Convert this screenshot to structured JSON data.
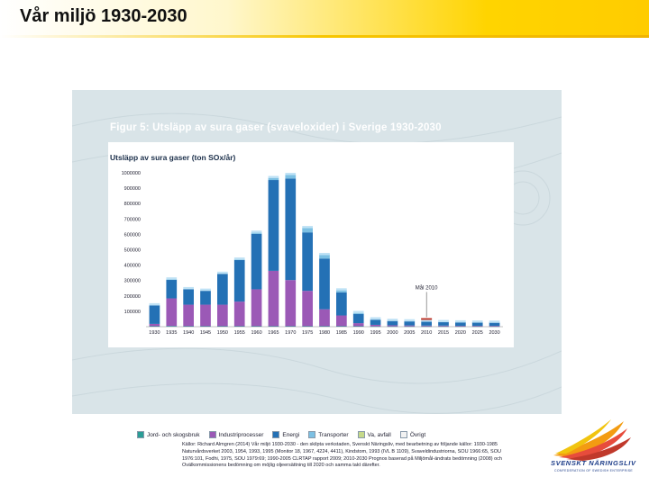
{
  "slide": {
    "title": "Vår miljö 1930-2030"
  },
  "figure": {
    "title": "Figur 5: Utsläpp av sura gaser (svaveloxider) i Sverige 1930-2030",
    "source": "Källor: Richard Almgren (2014) Vår miljö 1930-2030 - den skilpta verkstaden, Svenskt Näringsliv, med bearbetning av följande källor: 1930-1985 Naturvårdsverket 2003, 1954, 1993, 1995 (Monitor 18, 1967, 4224, 4411), Kindstom, 1993 (IVL B 1109), Svaveldindustriorna, SOU 1966:65, SOU 1976:101, Fodhi, 1975, SOU 1979:69; 1990-2005 CLRTAP rapport 2009; 2010-2030 Prognos baserad på Miljömål-ändrats bedömning (2008) och Ovälkommissionens bedömning om möjlig oljeersättning till 2020 och samma takt därefter."
  },
  "chart_data": {
    "type": "bar",
    "stacked": true,
    "title": "Utsläpp av sura gaser (ton SOx/år)",
    "ylabel": "Utsläpp av sura gaser (ton SOx/år)",
    "xlabel": "",
    "ylim": [
      0,
      1000000
    ],
    "yticks": [
      100000,
      200000,
      300000,
      400000,
      500000,
      600000,
      700000,
      800000,
      900000,
      1000000
    ],
    "grid": false,
    "categories": [
      "1930",
      "1935",
      "1940",
      "1945",
      "1950",
      "1955",
      "1960",
      "1965",
      "1970",
      "1975",
      "1980",
      "1985",
      "1990",
      "1995",
      "2000",
      "2005",
      "2010",
      "2015",
      "2020",
      "2025",
      "2030"
    ],
    "series": [
      {
        "name": "Jord- och skogsbruk",
        "color": "#2a9d96",
        "values": [
          3000,
          4000,
          3000,
          3000,
          3000,
          3000,
          3000,
          3000,
          3000,
          3000,
          3000,
          3000,
          3000,
          2000,
          2000,
          2000,
          2000,
          2000,
          2000,
          2000,
          2000
        ]
      },
      {
        "name": "Industriprocesser",
        "color": "#9b59b6",
        "values": [
          15000,
          180000,
          140000,
          140000,
          140000,
          160000,
          240000,
          360000,
          300000,
          230000,
          110000,
          70000,
          20000,
          10000,
          7000,
          6000,
          5000,
          5000,
          4000,
          4000,
          4000
        ]
      },
      {
        "name": "Energi",
        "color": "#2471b5",
        "values": [
          120000,
          120000,
          100000,
          90000,
          200000,
          270000,
          360000,
          590000,
          660000,
          380000,
          330000,
          150000,
          60000,
          33000,
          28000,
          27000,
          26000,
          24000,
          23000,
          22000,
          21000
        ]
      },
      {
        "name": "Transporter",
        "color": "#7cc0e3",
        "values": [
          3000,
          5000,
          3000,
          3000,
          3000,
          5000,
          10000,
          15000,
          25000,
          30000,
          25000,
          15000,
          8000,
          5000,
          3000,
          2000,
          2000,
          1000,
          1000,
          1000,
          1000
        ]
      },
      {
        "name": "Va, avfall",
        "color": "#c5d98a",
        "values": [
          0,
          0,
          0,
          0,
          0,
          0,
          0,
          0,
          0,
          0,
          0,
          0,
          0,
          0,
          0,
          0,
          0,
          0,
          0,
          0,
          0
        ]
      },
      {
        "name": "Övrigt",
        "color": "#f2f2f2",
        "values": [
          0,
          0,
          0,
          0,
          0,
          0,
          0,
          0,
          0,
          0,
          0,
          0,
          0,
          0,
          0,
          0,
          0,
          0,
          0,
          0,
          0
        ]
      }
    ],
    "annotations": [
      {
        "text": "Mål 2010",
        "category": "2010",
        "value": 50000,
        "color": "#c0392b"
      }
    ]
  },
  "logo": {
    "name": "SVENSKT NÄRINGSLIV",
    "tagline": "CONFEDERATION OF SWEDISH ENTERPRISE"
  }
}
